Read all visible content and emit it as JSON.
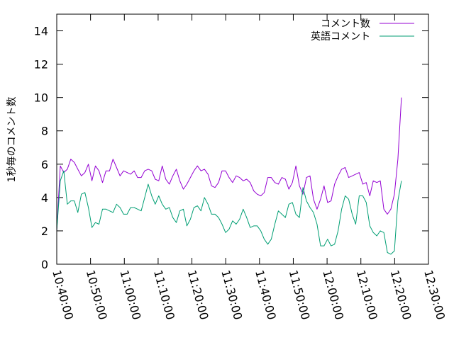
{
  "chart_data": {
    "type": "line",
    "title": "",
    "xlabel": "",
    "ylabel": "1秒毎のコメント数",
    "ylim": [
      0,
      15
    ],
    "yticks": [
      0,
      2,
      4,
      6,
      8,
      10,
      12,
      14
    ],
    "xlim": [
      "10:40:00",
      "12:30:00"
    ],
    "xticks": [
      "10:40:00",
      "10:50:00",
      "11:00:00",
      "11:10:00",
      "11:20:00",
      "11:30:00",
      "11:40:00",
      "11:50:00",
      "12:00:00",
      "12:10:00",
      "12:20:00",
      "12:30:00"
    ],
    "grid": false,
    "legend_position": "top-right",
    "x_start": "10:40:00",
    "x_end": "12:22:00",
    "series": [
      {
        "name": "コメント数",
        "color": "#9400d3",
        "values": [
          2.0,
          5.9,
          5.5,
          5.7,
          6.3,
          6.1,
          5.7,
          5.3,
          5.5,
          6.0,
          5.0,
          5.9,
          5.6,
          4.9,
          5.6,
          5.6,
          6.3,
          5.8,
          5.3,
          5.6,
          5.5,
          5.4,
          5.6,
          5.2,
          5.2,
          5.6,
          5.7,
          5.6,
          5.1,
          5.0,
          5.9,
          5.1,
          4.8,
          5.3,
          5.7,
          5.0,
          4.5,
          4.8,
          5.2,
          5.6,
          5.9,
          5.6,
          5.7,
          5.4,
          4.7,
          4.6,
          4.9,
          5.6,
          5.6,
          5.2,
          4.9,
          5.3,
          5.2,
          5.0,
          5.1,
          4.9,
          4.4,
          4.2,
          4.1,
          4.3,
          5.2,
          5.2,
          4.9,
          4.8,
          5.2,
          5.1,
          4.5,
          4.9,
          5.9,
          4.7,
          4.2,
          5.2,
          5.3,
          3.9,
          3.3,
          3.9,
          4.7,
          3.7,
          3.8,
          4.8,
          5.3,
          5.7,
          5.8,
          5.2,
          5.3,
          5.4,
          5.5,
          4.8,
          4.9,
          4.1,
          5.0,
          4.9,
          5.0,
          3.3,
          3.0,
          3.3,
          4.2,
          6.3,
          10.0
        ]
      },
      {
        "name": "英語コメント",
        "color": "#009e73",
        "values": [
          2.0,
          5.0,
          5.6,
          3.6,
          3.8,
          3.8,
          3.1,
          4.2,
          4.3,
          3.4,
          2.2,
          2.5,
          2.4,
          3.3,
          3.3,
          3.2,
          3.1,
          3.6,
          3.4,
          3.0,
          3.0,
          3.4,
          3.4,
          3.3,
          3.2,
          4.0,
          4.8,
          4.1,
          3.6,
          4.1,
          3.6,
          3.3,
          3.4,
          2.8,
          2.5,
          3.2,
          3.3,
          2.3,
          2.7,
          3.4,
          3.5,
          3.2,
          4.0,
          3.6,
          3.0,
          3.0,
          2.8,
          2.4,
          1.9,
          2.1,
          2.6,
          2.4,
          2.7,
          3.3,
          2.8,
          2.2,
          2.3,
          2.3,
          2.0,
          1.5,
          1.2,
          1.5,
          2.4,
          3.2,
          3.0,
          2.8,
          3.6,
          3.7,
          3.0,
          2.8,
          4.6,
          3.8,
          3.4,
          3.1,
          2.4,
          1.1,
          1.1,
          1.5,
          1.1,
          1.2,
          2.0,
          3.3,
          4.1,
          3.9,
          3.0,
          2.4,
          4.1,
          4.1,
          3.7,
          2.3,
          1.9,
          1.7,
          2.0,
          1.9,
          0.7,
          0.6,
          0.8,
          3.8,
          5.0
        ]
      }
    ]
  }
}
